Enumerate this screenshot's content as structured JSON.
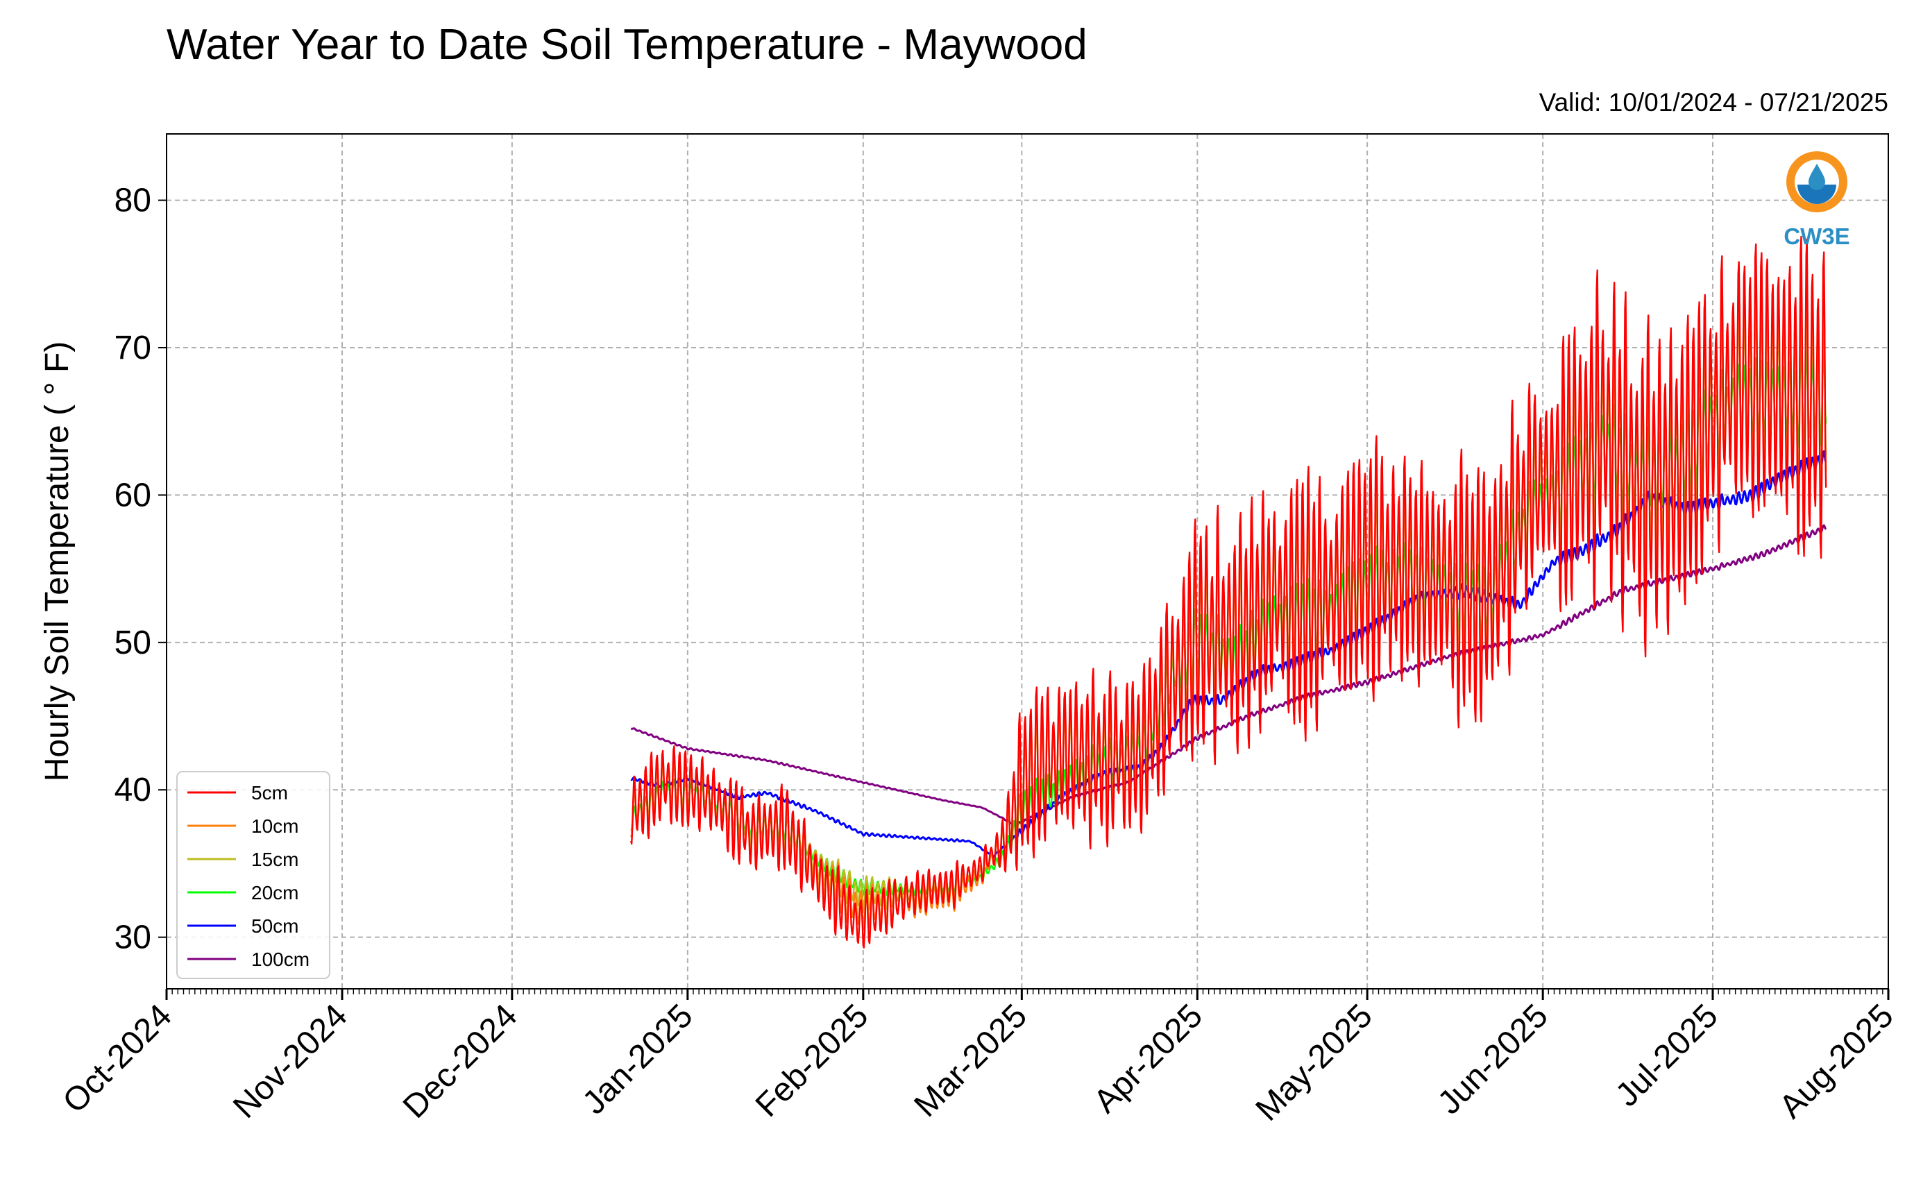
{
  "chart_data": {
    "type": "line",
    "title": "Water Year to Date Soil Temperature - Maywood",
    "valid_text": "Valid: 10/01/2024 - 07/21/2025",
    "ylabel": "Hourly Soil Temperature ( ° F)",
    "xlabel": "",
    "ylim": [
      26.5,
      84.5
    ],
    "yticks": [
      30,
      40,
      50,
      60,
      70,
      80
    ],
    "xlim": [
      "2024-10-01",
      "2025-08-01"
    ],
    "xticks": [
      {
        "date": "2024-10-01",
        "label": "Oct-2024"
      },
      {
        "date": "2024-11-01",
        "label": "Nov-2024"
      },
      {
        "date": "2024-12-01",
        "label": "Dec-2024"
      },
      {
        "date": "2025-01-01",
        "label": "Jan-2025"
      },
      {
        "date": "2025-02-01",
        "label": "Feb-2025"
      },
      {
        "date": "2025-03-01",
        "label": "Mar-2025"
      },
      {
        "date": "2025-04-01",
        "label": "Apr-2025"
      },
      {
        "date": "2025-05-01",
        "label": "May-2025"
      },
      {
        "date": "2025-06-01",
        "label": "Jun-2025"
      },
      {
        "date": "2025-07-01",
        "label": "Jul-2025"
      },
      {
        "date": "2025-08-01",
        "label": "Aug-2025"
      }
    ],
    "grid": true,
    "legend_position": "lower-left",
    "logo_text": "CW3E",
    "series": [
      {
        "name": "5cm",
        "color": "#ff0000",
        "diurnal": 1.0,
        "x": [
          "2024-12-22",
          "2024-12-28",
          "2025-01-05",
          "2025-01-12",
          "2025-01-18",
          "2025-01-25",
          "2025-01-31",
          "2025-02-10",
          "2025-02-17",
          "2025-02-21",
          "2025-02-26",
          "2025-03-01",
          "2025-03-08",
          "2025-03-15",
          "2025-03-22",
          "2025-03-28",
          "2025-04-01",
          "2025-04-08",
          "2025-04-15",
          "2025-04-22",
          "2025-04-30",
          "2025-05-08",
          "2025-05-15",
          "2025-05-22",
          "2025-05-30",
          "2025-06-05",
          "2025-06-12",
          "2025-06-18",
          "2025-06-24",
          "2025-06-30",
          "2025-07-05",
          "2025-07-12",
          "2025-07-21"
        ],
        "y": [
          38.5,
          40.5,
          39.5,
          37,
          37.5,
          33.5,
          31,
          33,
          33.5,
          34.5,
          36.5,
          40.5,
          42.5,
          42,
          42.5,
          47.5,
          50.5,
          50.5,
          53,
          52.5,
          55,
          55,
          54,
          53,
          60.5,
          61.5,
          64.5,
          60.5,
          61,
          64.5,
          68,
          67.5,
          66
        ]
      },
      {
        "name": "10cm",
        "color": "#ff7f0e",
        "diurnal": 0.8,
        "x": [
          "2024-12-22",
          "2024-12-28",
          "2025-01-05",
          "2025-01-12",
          "2025-01-18",
          "2025-01-25",
          "2025-01-31",
          "2025-02-10",
          "2025-02-17",
          "2025-02-21",
          "2025-02-26",
          "2025-03-01",
          "2025-03-08",
          "2025-03-15",
          "2025-03-22",
          "2025-03-28",
          "2025-04-01",
          "2025-04-08",
          "2025-04-15",
          "2025-04-22",
          "2025-04-30",
          "2025-05-08",
          "2025-05-15",
          "2025-05-22",
          "2025-05-30",
          "2025-06-05",
          "2025-06-12",
          "2025-06-18",
          "2025-06-24",
          "2025-06-30",
          "2025-07-05",
          "2025-07-12",
          "2025-07-21"
        ],
        "y": [
          38.5,
          40.5,
          39.5,
          37,
          37.5,
          34,
          32,
          32.5,
          33,
          34,
          36.5,
          40.5,
          42.5,
          42,
          42.5,
          47.5,
          50.5,
          50.5,
          53,
          52.5,
          55,
          55,
          54,
          53,
          60.5,
          61.5,
          64.5,
          61,
          61.5,
          65,
          68,
          67.5,
          66
        ]
      },
      {
        "name": "15cm",
        "color": "#bcbd22",
        "diurnal": 0.6,
        "x": [
          "2024-12-22",
          "2024-12-28",
          "2025-01-05",
          "2025-01-12",
          "2025-01-18",
          "2025-01-25",
          "2025-01-31",
          "2025-02-10",
          "2025-02-17",
          "2025-02-21",
          "2025-02-26",
          "2025-03-01",
          "2025-03-08",
          "2025-03-15",
          "2025-03-22",
          "2025-03-28",
          "2025-04-01",
          "2025-04-08",
          "2025-04-15",
          "2025-04-22",
          "2025-04-30",
          "2025-05-08",
          "2025-05-15",
          "2025-05-22",
          "2025-05-30",
          "2025-06-05",
          "2025-06-12",
          "2025-06-18",
          "2025-06-24",
          "2025-06-30",
          "2025-07-05",
          "2025-07-12",
          "2025-07-21"
        ],
        "y": [
          38.5,
          40.5,
          39.5,
          37.5,
          37.5,
          34.5,
          33,
          33,
          33.5,
          34,
          36.5,
          40.5,
          42.5,
          42,
          42.5,
          47.5,
          50.5,
          50.5,
          53,
          52.5,
          55,
          55,
          54,
          53,
          60,
          61,
          64,
          61,
          61.5,
          65,
          67.5,
          67,
          66
        ]
      },
      {
        "name": "20cm",
        "color": "#00ff00",
        "diurnal": 0.3,
        "x": [
          "2024-12-22",
          "2024-12-28",
          "2025-01-05",
          "2025-01-12",
          "2025-01-18",
          "2025-01-25",
          "2025-01-31",
          "2025-02-10",
          "2025-02-17",
          "2025-02-21",
          "2025-02-26",
          "2025-03-01",
          "2025-03-08",
          "2025-03-15",
          "2025-03-22",
          "2025-03-28",
          "2025-04-01",
          "2025-04-08",
          "2025-04-15",
          "2025-04-22",
          "2025-04-30",
          "2025-05-08",
          "2025-05-15",
          "2025-05-22",
          "2025-05-30",
          "2025-06-05",
          "2025-06-12",
          "2025-06-18",
          "2025-06-24",
          "2025-06-30",
          "2025-07-05",
          "2025-07-12",
          "2025-07-21"
        ],
        "y": [
          38,
          40,
          39.5,
          37.5,
          37.5,
          35,
          33.5,
          33.3,
          33.5,
          33.8,
          35.5,
          38.5,
          40,
          41.5,
          42.5,
          48,
          50,
          48.5,
          51.5,
          51.5,
          53.5,
          54.5,
          53.5,
          52.5,
          59,
          60.5,
          63.5,
          61,
          61.5,
          64.5,
          66.5,
          66.5,
          66.5
        ]
      },
      {
        "name": "50cm",
        "color": "#0000ff",
        "diurnal": 0.05,
        "x": [
          "2024-12-22",
          "2024-12-27",
          "2025-01-01",
          "2025-01-10",
          "2025-01-15",
          "2025-01-24",
          "2025-02-01",
          "2025-02-20",
          "2025-02-24",
          "2025-03-01",
          "2025-03-08",
          "2025-03-15",
          "2025-03-22",
          "2025-03-26",
          "2025-03-31",
          "2025-04-05",
          "2025-04-12",
          "2025-04-18",
          "2025-04-25",
          "2025-05-02",
          "2025-05-10",
          "2025-05-18",
          "2025-05-28",
          "2025-06-03",
          "2025-06-07",
          "2025-06-14",
          "2025-06-20",
          "2025-06-26",
          "2025-07-02",
          "2025-07-08",
          "2025-07-13",
          "2025-07-21"
        ],
        "y": [
          40.8,
          40.3,
          40.8,
          39.5,
          39.8,
          38.5,
          37,
          36.5,
          35.5,
          37.2,
          39.5,
          41,
          41.5,
          43,
          46,
          46,
          48,
          48.5,
          49.5,
          51,
          53,
          53.5,
          52.5,
          55.5,
          56,
          57.5,
          59.8,
          59,
          59.5,
          60,
          61.2,
          62.5
        ]
      },
      {
        "name": "100cm",
        "color": "#800080",
        "diurnal": 0.02,
        "x": [
          "2024-12-22",
          "2025-01-01",
          "2025-01-15",
          "2025-02-01",
          "2025-02-15",
          "2025-02-22",
          "2025-02-28",
          "2025-03-10",
          "2025-03-20",
          "2025-04-01",
          "2025-04-10",
          "2025-04-20",
          "2025-05-01",
          "2025-05-15",
          "2025-06-01",
          "2025-06-15",
          "2025-07-01",
          "2025-07-10",
          "2025-07-21"
        ],
        "y": [
          44.2,
          42.8,
          42.0,
          40.5,
          39.3,
          38.8,
          37.6,
          39.5,
          40.5,
          43.5,
          45,
          46.3,
          47.3,
          49,
          50.5,
          53.5,
          55,
          56,
          57.8
        ]
      }
    ]
  }
}
